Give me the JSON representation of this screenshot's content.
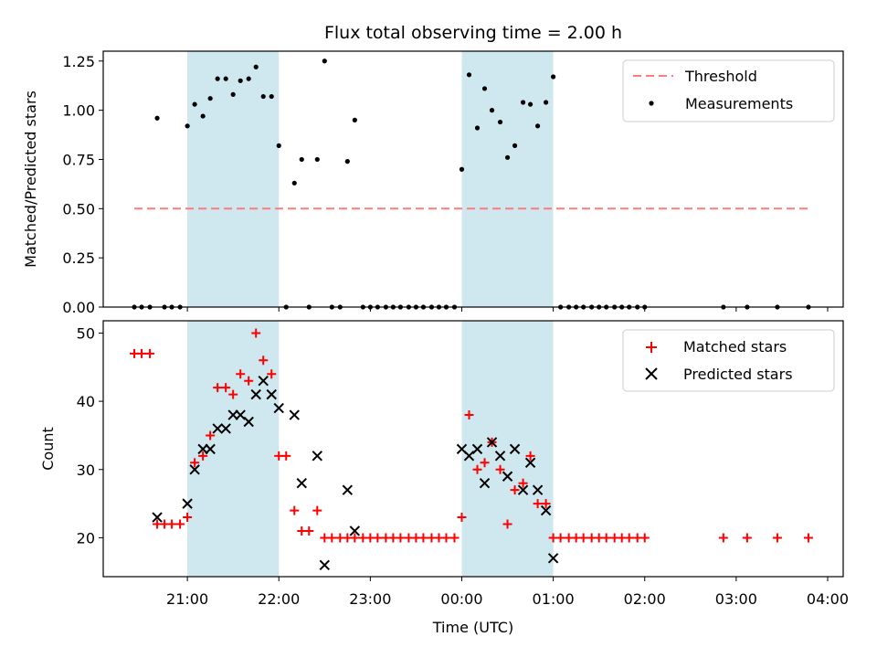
{
  "title": "Flux total observing time = 2.00 h",
  "xlabel": "Time (UTC)",
  "x_tick_labels": [
    "21:00",
    "22:00",
    "23:00",
    "00:00",
    "01:00",
    "02:00",
    "03:00",
    "04:00"
  ],
  "colors": {
    "threshold": "#ff7b7b",
    "measurement": "#000000",
    "matched": "#ff0000",
    "predicted": "#000000",
    "shade": "#cfe8ef"
  },
  "chart_data": [
    {
      "type": "scatter",
      "ylabel": "Matched/Predicted stars",
      "ylim": [
        0,
        1.3
      ],
      "y_tick_labels": [
        "0.00",
        "0.25",
        "0.50",
        "0.75",
        "1.00",
        "1.25"
      ],
      "y_ticks": [
        0,
        0.25,
        0.5,
        0.75,
        1.0,
        1.25
      ],
      "xlim": [
        -0.92,
        7.17
      ],
      "x_ticks": [
        0,
        1,
        2,
        3,
        4,
        5,
        6,
        7
      ],
      "shaded_ranges": [
        [
          0.0,
          1.0
        ],
        [
          3.0,
          4.0
        ]
      ],
      "legend": [
        "Threshold",
        "Measurements"
      ],
      "legend_position": "top-right",
      "threshold": {
        "name": "Threshold",
        "y": 0.5,
        "x": [
          -0.58,
          6.82
        ]
      },
      "measurements": {
        "name": "Measurements",
        "x": [
          -0.58,
          -0.5,
          -0.41,
          -0.33,
          -0.25,
          -0.17,
          -0.08,
          0.0,
          0.08,
          0.17,
          0.25,
          0.33,
          0.42,
          0.5,
          0.58,
          0.67,
          0.75,
          0.83,
          0.92,
          1.0,
          1.08,
          1.17,
          1.25,
          1.33,
          1.42,
          1.5,
          1.58,
          1.67,
          1.75,
          1.83,
          1.92,
          2.0,
          2.08,
          2.17,
          2.25,
          2.33,
          2.42,
          2.5,
          2.58,
          2.67,
          2.75,
          2.83,
          2.92,
          3.0,
          3.08,
          3.17,
          3.25,
          3.33,
          3.42,
          3.5,
          3.58,
          3.67,
          3.75,
          3.83,
          3.92,
          4.0,
          4.08,
          4.17,
          4.25,
          4.33,
          4.42,
          4.5,
          4.58,
          4.67,
          4.75,
          4.83,
          4.92,
          5.0,
          5.86,
          6.12,
          6.45,
          6.79
        ],
        "y": [
          0,
          0,
          0,
          0.96,
          0,
          0,
          0,
          0.92,
          1.03,
          0.97,
          1.06,
          1.16,
          1.16,
          1.08,
          1.15,
          1.16,
          1.22,
          1.07,
          1.07,
          0.82,
          0,
          0.63,
          0.75,
          0,
          0.75,
          1.25,
          0,
          0,
          0.74,
          0.95,
          0,
          0,
          0,
          0,
          0,
          0,
          0,
          0,
          0,
          0,
          0,
          0,
          0,
          0.7,
          1.18,
          0.91,
          1.11,
          1.0,
          0.94,
          0.76,
          0.82,
          1.04,
          1.03,
          0.92,
          1.04,
          1.17,
          0,
          0,
          0,
          0,
          0,
          0,
          0,
          0,
          0,
          0,
          0,
          0,
          0,
          0,
          0,
          0
        ]
      }
    },
    {
      "type": "scatter",
      "ylabel": "Count",
      "ylim": [
        14.3,
        51.8
      ],
      "y_tick_labels": [
        "20",
        "30",
        "40",
        "50"
      ],
      "y_ticks": [
        20,
        30,
        40,
        50
      ],
      "xlim": [
        -0.92,
        7.17
      ],
      "x_ticks": [
        0,
        1,
        2,
        3,
        4,
        5,
        6,
        7
      ],
      "shaded_ranges": [
        [
          0.0,
          1.0
        ],
        [
          3.0,
          4.0
        ]
      ],
      "legend": [
        "Matched stars",
        "Predicted stars"
      ],
      "legend_position": "top-right",
      "series": [
        {
          "name": "Matched stars",
          "marker": "plus",
          "x": [
            -0.58,
            -0.5,
            -0.41,
            -0.33,
            -0.25,
            -0.17,
            -0.08,
            0.0,
            0.08,
            0.17,
            0.25,
            0.33,
            0.42,
            0.5,
            0.58,
            0.67,
            0.75,
            0.83,
            0.92,
            1.0,
            1.08,
            1.17,
            1.25,
            1.33,
            1.42,
            1.5,
            1.58,
            1.67,
            1.75,
            1.83,
            1.92,
            2.0,
            2.08,
            2.17,
            2.25,
            2.33,
            2.42,
            2.5,
            2.58,
            2.67,
            2.75,
            2.83,
            2.92,
            3.0,
            3.08,
            3.17,
            3.25,
            3.33,
            3.42,
            3.5,
            3.58,
            3.67,
            3.75,
            3.83,
            3.92,
            4.0,
            4.08,
            4.17,
            4.25,
            4.33,
            4.42,
            4.5,
            4.58,
            4.67,
            4.75,
            4.83,
            4.92,
            5.0,
            5.86,
            6.12,
            6.45,
            6.79
          ],
          "y": [
            47,
            47,
            47,
            22,
            22,
            22,
            22,
            23,
            31,
            32,
            35,
            42,
            42,
            41,
            44,
            43,
            50,
            46,
            44,
            32,
            32,
            24,
            21,
            21,
            24,
            20,
            20,
            20,
            20,
            20,
            20,
            20,
            20,
            20,
            20,
            20,
            20,
            20,
            20,
            20,
            20,
            20,
            20,
            23,
            38,
            30,
            31,
            34,
            30,
            22,
            27,
            28,
            32,
            25,
            25,
            20,
            20,
            20,
            20,
            20,
            20,
            20,
            20,
            20,
            20,
            20,
            20,
            20,
            20,
            20,
            20,
            20
          ]
        },
        {
          "name": "Predicted stars",
          "marker": "x",
          "x": [
            -0.33,
            0.0,
            0.08,
            0.17,
            0.25,
            0.33,
            0.42,
            0.5,
            0.58,
            0.67,
            0.75,
            0.83,
            0.92,
            1.0,
            1.17,
            1.25,
            1.42,
            1.5,
            1.75,
            1.83,
            3.0,
            3.08,
            3.17,
            3.25,
            3.33,
            3.42,
            3.5,
            3.58,
            3.67,
            3.75,
            3.83,
            3.92,
            4.0
          ],
          "y": [
            23,
            25,
            30,
            33,
            33,
            36,
            36,
            38,
            38,
            37,
            41,
            43,
            41,
            39,
            38,
            28,
            32,
            16,
            27,
            21,
            33,
            32,
            33,
            28,
            34,
            32,
            29,
            33,
            27,
            31,
            27,
            24,
            17
          ]
        }
      ]
    }
  ]
}
